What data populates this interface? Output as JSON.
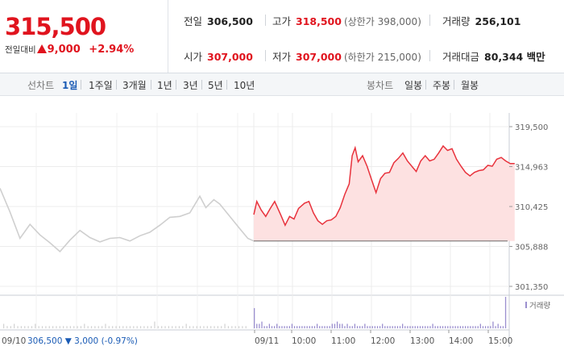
{
  "quote": {
    "price": "315,500",
    "change_label": "전일대비",
    "change_icon": "up-triangle-icon",
    "change": "9,000",
    "change_pct": "+2.94%",
    "up_color": "#e0141e"
  },
  "stats": {
    "prev_close_label": "전일",
    "prev_close": "306,500",
    "high_label": "고가",
    "high": "318,500",
    "upper_limit": "(상한가 398,000)",
    "volume_label": "거래량",
    "volume": "256,101",
    "open_label": "시가",
    "open": "307,000",
    "low_label": "저가",
    "low": "307,000",
    "lower_limit": "(하한가 215,000)",
    "amount_label": "거래대금",
    "amount": "80,344 백만"
  },
  "toolbar": {
    "line_label": "선차트",
    "line_tabs": [
      "1일",
      "1주일",
      "3개월",
      "1년",
      "3년",
      "5년",
      "10년"
    ],
    "selected_line_tab": "1일",
    "candle_label": "봉차트",
    "candle_tabs": [
      "일봉",
      "주봉",
      "월봉"
    ]
  },
  "chart_data": {
    "type": "line",
    "price_axis": {
      "ticks": [
        319500,
        314963,
        310425,
        305888,
        301350
      ],
      "tick_labels": [
        "319,500",
        "314,963",
        "310,425",
        "305,888",
        "301,350"
      ],
      "ylim": [
        301350,
        319500
      ]
    },
    "volume_legend": "거래량",
    "x_labels": [
      "09/11",
      "10:00",
      "11:00",
      "12:00",
      "13:00",
      "14:00",
      "15:00"
    ],
    "prev_day": {
      "label": "09/10",
      "close": "306,500",
      "change": "▼ 3,000",
      "change_pct": "(-0.97%)",
      "color": "#cfcfcf",
      "points": [
        {
          "t": 0,
          "v": 312500
        },
        {
          "t": 0.5,
          "v": 309800
        },
        {
          "t": 1,
          "v": 306800
        },
        {
          "t": 1.5,
          "v": 308400
        },
        {
          "t": 2,
          "v": 307200
        },
        {
          "t": 2.5,
          "v": 306300
        },
        {
          "t": 3,
          "v": 305300
        },
        {
          "t": 3.5,
          "v": 306600
        },
        {
          "t": 4,
          "v": 307700
        },
        {
          "t": 4.5,
          "v": 306900
        },
        {
          "t": 5,
          "v": 306400
        },
        {
          "t": 5.5,
          "v": 306800
        },
        {
          "t": 6,
          "v": 306900
        },
        {
          "t": 6.5,
          "v": 306500
        },
        {
          "t": 7,
          "v": 307100
        },
        {
          "t": 7.5,
          "v": 307500
        },
        {
          "t": 8,
          "v": 308300
        },
        {
          "t": 8.5,
          "v": 309200
        },
        {
          "t": 9,
          "v": 309300
        },
        {
          "t": 9.5,
          "v": 309700
        },
        {
          "t": 10,
          "v": 311600
        },
        {
          "t": 10.3,
          "v": 310300
        },
        {
          "t": 10.7,
          "v": 311200
        },
        {
          "t": 11,
          "v": 310700
        },
        {
          "t": 11.5,
          "v": 309300
        },
        {
          "t": 12,
          "v": 307900
        },
        {
          "t": 12.4,
          "v": 306800
        },
        {
          "t": 12.7,
          "v": 306500
        }
      ]
    },
    "today": {
      "color": "#e8323c",
      "fill": "#fde1e1",
      "base": 306500,
      "points": [
        {
          "t": 0,
          "v": 309500
        },
        {
          "t": 0.1,
          "v": 311000
        },
        {
          "t": 0.25,
          "v": 310000
        },
        {
          "t": 0.4,
          "v": 309300
        },
        {
          "t": 0.55,
          "v": 310200
        },
        {
          "t": 0.7,
          "v": 311000
        },
        {
          "t": 0.9,
          "v": 309500
        },
        {
          "t": 1.05,
          "v": 308300
        },
        {
          "t": 1.2,
          "v": 309300
        },
        {
          "t": 1.35,
          "v": 309000
        },
        {
          "t": 1.5,
          "v": 310200
        },
        {
          "t": 1.7,
          "v": 310800
        },
        {
          "t": 1.85,
          "v": 311000
        },
        {
          "t": 2,
          "v": 309700
        },
        {
          "t": 2.15,
          "v": 308800
        },
        {
          "t": 2.3,
          "v": 308400
        },
        {
          "t": 2.45,
          "v": 308800
        },
        {
          "t": 2.6,
          "v": 308900
        },
        {
          "t": 2.75,
          "v": 309300
        },
        {
          "t": 2.9,
          "v": 310300
        },
        {
          "t": 3.05,
          "v": 311800
        },
        {
          "t": 3.2,
          "v": 313000
        },
        {
          "t": 3.3,
          "v": 316200
        },
        {
          "t": 3.4,
          "v": 317100
        },
        {
          "t": 3.5,
          "v": 315500
        },
        {
          "t": 3.65,
          "v": 316200
        },
        {
          "t": 3.8,
          "v": 315000
        },
        {
          "t": 3.95,
          "v": 313500
        },
        {
          "t": 4.1,
          "v": 312000
        },
        {
          "t": 4.25,
          "v": 313600
        },
        {
          "t": 4.4,
          "v": 314200
        },
        {
          "t": 4.55,
          "v": 314300
        },
        {
          "t": 4.7,
          "v": 315400
        },
        {
          "t": 4.85,
          "v": 315900
        },
        {
          "t": 5,
          "v": 316500
        },
        {
          "t": 5.15,
          "v": 315600
        },
        {
          "t": 5.3,
          "v": 315000
        },
        {
          "t": 5.45,
          "v": 314400
        },
        {
          "t": 5.6,
          "v": 315600
        },
        {
          "t": 5.75,
          "v": 316200
        },
        {
          "t": 5.9,
          "v": 315600
        },
        {
          "t": 6.05,
          "v": 315800
        },
        {
          "t": 6.2,
          "v": 316500
        },
        {
          "t": 6.35,
          "v": 317300
        },
        {
          "t": 6.5,
          "v": 316800
        },
        {
          "t": 6.65,
          "v": 317000
        },
        {
          "t": 6.8,
          "v": 315800
        },
        {
          "t": 6.95,
          "v": 315000
        },
        {
          "t": 7.1,
          "v": 314300
        },
        {
          "t": 7.25,
          "v": 313900
        },
        {
          "t": 7.4,
          "v": 314300
        },
        {
          "t": 7.55,
          "v": 314500
        },
        {
          "t": 7.7,
          "v": 314600
        },
        {
          "t": 7.85,
          "v": 315100
        },
        {
          "t": 8,
          "v": 315000
        },
        {
          "t": 8.15,
          "v": 315800
        },
        {
          "t": 8.3,
          "v": 316000
        },
        {
          "t": 8.45,
          "v": 315600
        },
        {
          "t": 8.6,
          "v": 315300
        },
        {
          "t": 8.75,
          "v": 315300
        }
      ]
    },
    "volume_bars": {
      "color": "#9b8fcf",
      "prev_color": "#d2d2d2",
      "prev_values": [
        2,
        1,
        1,
        2,
        1,
        1,
        1,
        1,
        1,
        2,
        1,
        1,
        1,
        1,
        1,
        1,
        1,
        1,
        1,
        1,
        1,
        1,
        1,
        2,
        1,
        1,
        1,
        1,
        1,
        2,
        1,
        1,
        1,
        1,
        1,
        1,
        1,
        1,
        1,
        1,
        1,
        1,
        1,
        3,
        1,
        1,
        1,
        1,
        1,
        1,
        1,
        1,
        2,
        1,
        1,
        1,
        1,
        1,
        1,
        1,
        1,
        1,
        1,
        2,
        1,
        1,
        1,
        1,
        1,
        1
      ],
      "values": [
        9,
        2,
        2,
        3,
        1,
        1,
        2,
        1,
        1,
        2,
        1,
        1,
        1,
        1,
        1,
        2,
        1,
        1,
        1,
        1,
        1,
        1,
        1,
        1,
        1,
        2,
        1,
        1,
        1,
        1,
        1,
        2,
        2,
        3,
        2,
        2,
        1,
        2,
        1,
        1,
        2,
        1,
        1,
        1,
        2,
        1,
        1,
        1,
        1,
        1,
        1,
        2,
        1,
        1,
        1,
        1,
        1,
        1,
        1,
        2,
        1,
        1,
        1,
        1,
        1,
        1,
        1,
        1,
        1,
        1,
        1,
        2,
        1,
        1,
        1,
        1,
        1,
        1,
        1,
        1,
        1,
        1,
        1,
        1,
        1,
        1,
        1,
        1,
        1,
        1,
        2,
        1,
        1,
        1,
        1,
        3,
        1,
        2,
        1,
        1,
        14
      ]
    }
  }
}
